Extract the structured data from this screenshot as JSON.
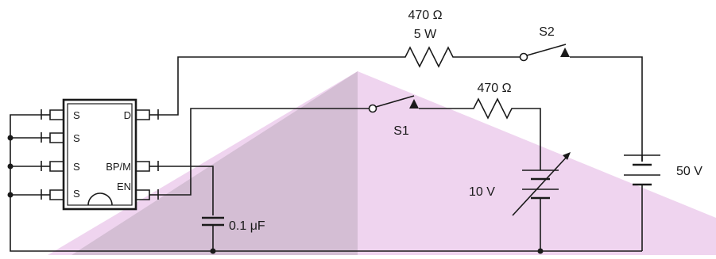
{
  "ic": {
    "pins_left": [
      "S",
      "S",
      "S",
      "S"
    ],
    "pins_right": [
      "D",
      "BP/M",
      "EN"
    ]
  },
  "components": {
    "r1_value": "470 Ω",
    "r1_power": "5 W",
    "s2_label": "S2",
    "s1_label": "S1",
    "r2_value": "470 Ω",
    "battery_50": "50 V",
    "battery_10": "10 V",
    "capacitor": "0.1 μF"
  },
  "colors": {
    "wire": "#1a1a1a",
    "watermark_light": "#e9c6e9",
    "watermark_dark": "#cbb4cb"
  }
}
